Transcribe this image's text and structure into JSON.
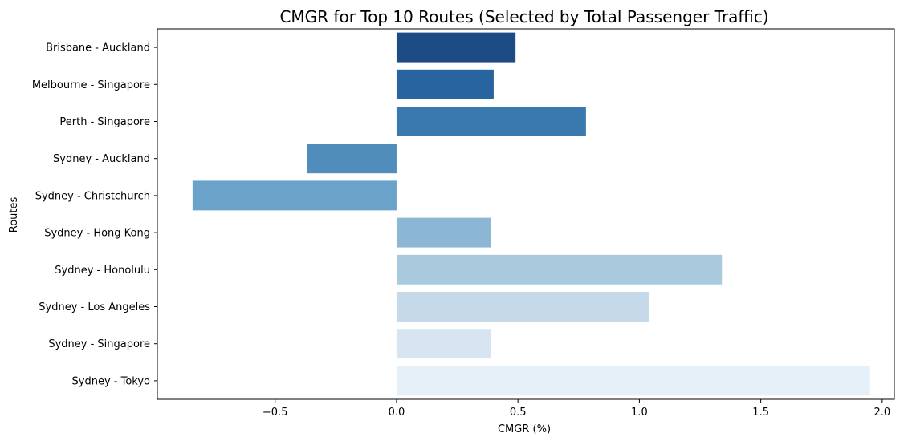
{
  "chart_data": {
    "type": "bar",
    "orientation": "horizontal",
    "title": "CMGR for Top 10 Routes (Selected by Total Passenger Traffic)",
    "xlabel": "CMGR (%)",
    "ylabel": "Routes",
    "categories": [
      "Brisbane - Auckland",
      "Melbourne - Singapore",
      "Perth - Singapore",
      "Sydney - Auckland",
      "Sydney - Christchurch",
      "Sydney - Hong Kong",
      "Sydney - Honolulu",
      "Sydney - Los Angeles",
      "Sydney - Singapore",
      "Sydney - Tokyo"
    ],
    "values": [
      0.49,
      0.4,
      0.78,
      -0.37,
      -0.84,
      0.39,
      1.34,
      1.04,
      0.39,
      1.95
    ],
    "colors": [
      "#1c4b85",
      "#2764a0",
      "#3979ad",
      "#508dba",
      "#6ba2c9",
      "#8cb7d4",
      "#a9cadd",
      "#c5d9e9",
      "#d7e4f1",
      "#e6f0f9"
    ],
    "xlim": [
      -0.985,
      2.05
    ],
    "xticks": [
      -0.5,
      0.0,
      0.5,
      1.0,
      1.5,
      2.0
    ],
    "xtick_labels": [
      "−0.5",
      "0.0",
      "0.5",
      "1.0",
      "1.5",
      "2.0"
    ],
    "grid": false,
    "legend": "none"
  }
}
